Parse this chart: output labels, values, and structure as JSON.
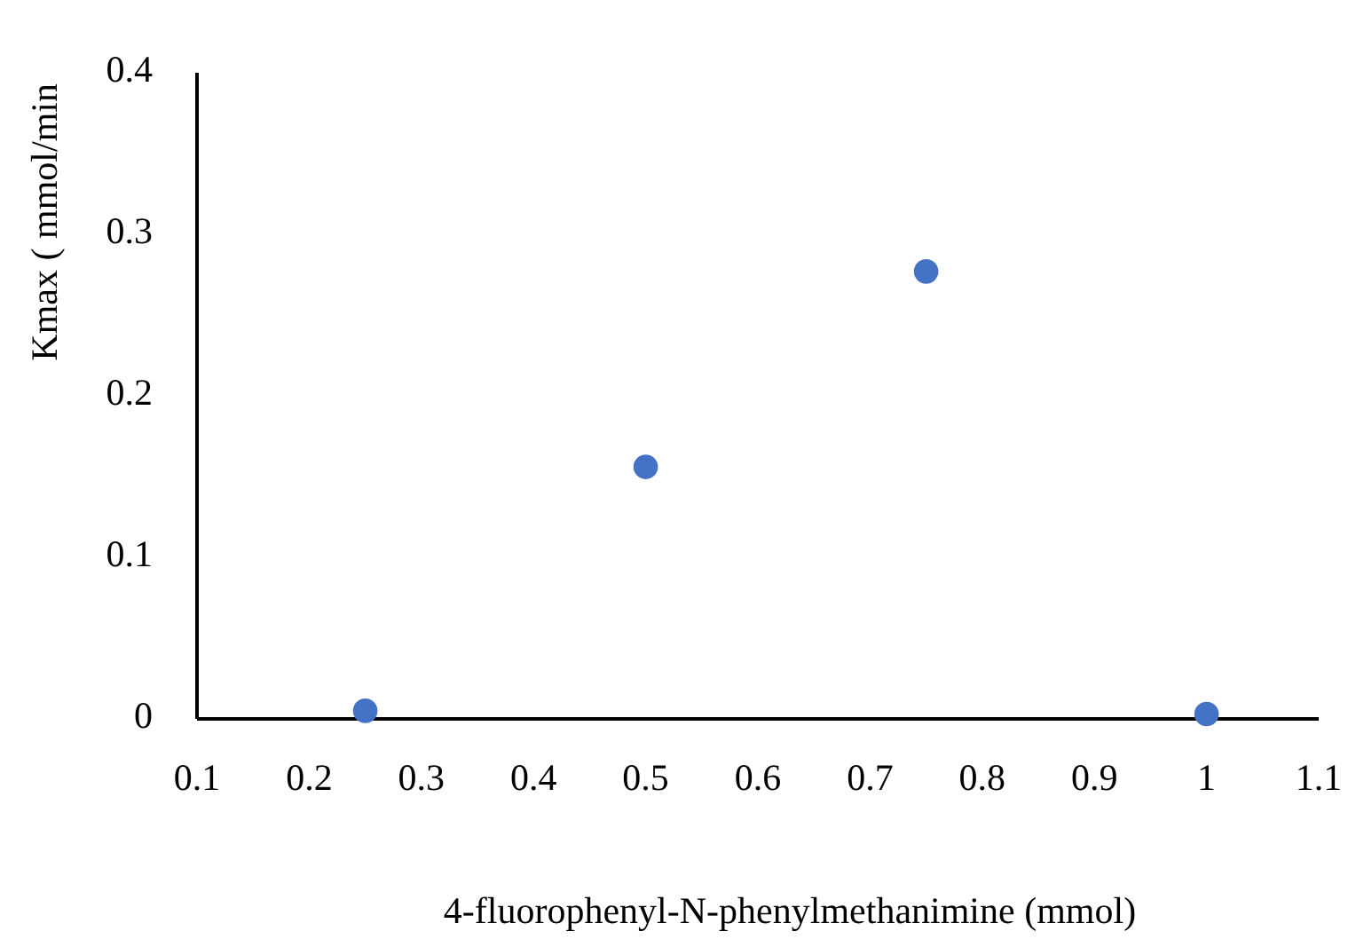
{
  "chart_data": {
    "type": "scatter",
    "xlabel": "4-fluorophenyl-N-phenylmethanimine (mmol)",
    "ylabel": "Kmax ( mmol/min",
    "x": [
      0.25,
      0.5,
      0.75,
      1.0
    ],
    "series": [
      {
        "color": "#4472c4",
        "values": [
          0.005,
          0.156,
          0.277,
          0.003
        ]
      }
    ],
    "xlim": [
      0.1,
      1.1
    ],
    "xticks": [
      0.1,
      0.2,
      0.3,
      0.4,
      0.5,
      0.6,
      0.7,
      0.8,
      0.9,
      1,
      1.1
    ],
    "ylim": [
      0,
      0.4
    ],
    "yticks": [
      0,
      0.1,
      0.2,
      0.3,
      0.4
    ],
    "grid": false,
    "marker": "circle"
  }
}
